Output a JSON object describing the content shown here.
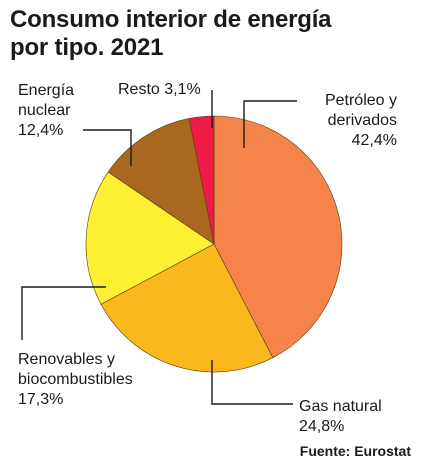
{
  "title_line1": "Consumo interior de energía",
  "title_line2": "por tipo. 2021",
  "source": "Fuente: Eurostat",
  "chart_data": {
    "type": "pie",
    "title": "Consumo interior de energía por tipo. 2021",
    "slices": [
      {
        "label_lines": [
          "Petróleo y",
          "derivados"
        ],
        "value": 42.4,
        "value_text": "42,4%",
        "color": "#f5844a"
      },
      {
        "label_lines": [
          "Gas natural"
        ],
        "value": 24.8,
        "value_text": "24,8%",
        "color": "#fbb81c"
      },
      {
        "label_lines": [
          "Renovables y",
          "biocombustibles"
        ],
        "value": 17.3,
        "value_text": "17,3%",
        "color": "#fdf033"
      },
      {
        "label_lines": [
          "Energía",
          "nuclear"
        ],
        "value": 12.4,
        "value_text": "12,4%",
        "color": "#a9671f"
      },
      {
        "label_lines": [
          "Resto"
        ],
        "value": 3.1,
        "value_text": "3,1%",
        "color": "#ee1c45"
      }
    ]
  }
}
